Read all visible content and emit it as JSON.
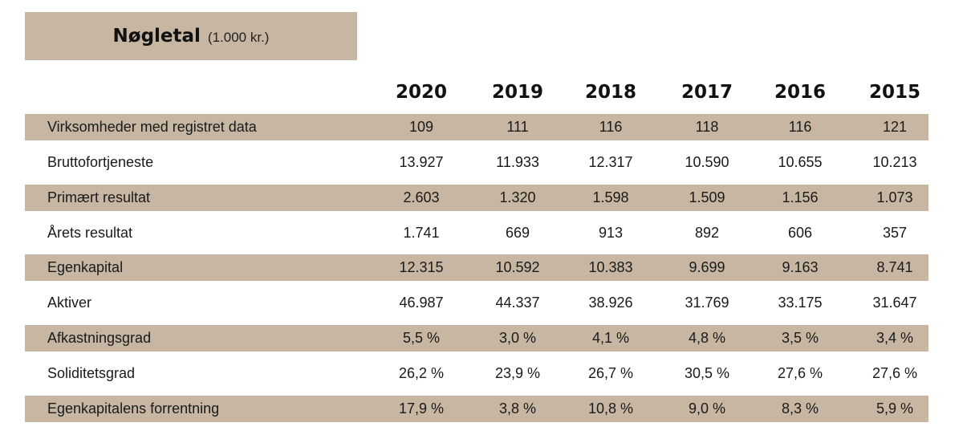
{
  "title": {
    "main": "Nøgletal",
    "unit": "(1.000 kr.)"
  },
  "years": [
    "2020",
    "2019",
    "2018",
    "2017",
    "2016",
    "2015"
  ],
  "rows": [
    {
      "label": "Virksomheder med registret data",
      "values": [
        "109",
        "111",
        "116",
        "118",
        "116",
        "121"
      ]
    },
    {
      "label": "Bruttofortjeneste",
      "values": [
        "13.927",
        "11.933",
        "12.317",
        "10.590",
        "10.655",
        "10.213"
      ]
    },
    {
      "label": "Primært resultat",
      "values": [
        "2.603",
        "1.320",
        "1.598",
        "1.509",
        "1.156",
        "1.073"
      ]
    },
    {
      "label": "Årets resultat",
      "values": [
        "1.741",
        "669",
        "913",
        "892",
        "606",
        "357"
      ]
    },
    {
      "label": "Egenkapital",
      "values": [
        "12.315",
        "10.592",
        "10.383",
        "9.699",
        "9.163",
        "8.741"
      ]
    },
    {
      "label": "Aktiver",
      "values": [
        "46.987",
        "44.337",
        "38.926",
        "31.769",
        "33.175",
        "31.647"
      ]
    },
    {
      "label": "Afkastningsgrad",
      "values": [
        "5,5 %",
        "3,0 %",
        "4,1 %",
        "4,8 %",
        "3,5 %",
        "3,4 %"
      ]
    },
    {
      "label": "Soliditetsgrad",
      "values": [
        "26,2 %",
        "23,9 %",
        "26,7 %",
        "30,5 %",
        "27,6 %",
        "27,6 %"
      ]
    },
    {
      "label": "Egenkapitalens forrentning",
      "values": [
        "17,9 %",
        "3,8 %",
        "10,8 %",
        "9,0 %",
        "8,3 %",
        "5,9 %"
      ]
    }
  ],
  "colors": {
    "band": "#c7b7a2",
    "text": "#1a1a1a"
  }
}
